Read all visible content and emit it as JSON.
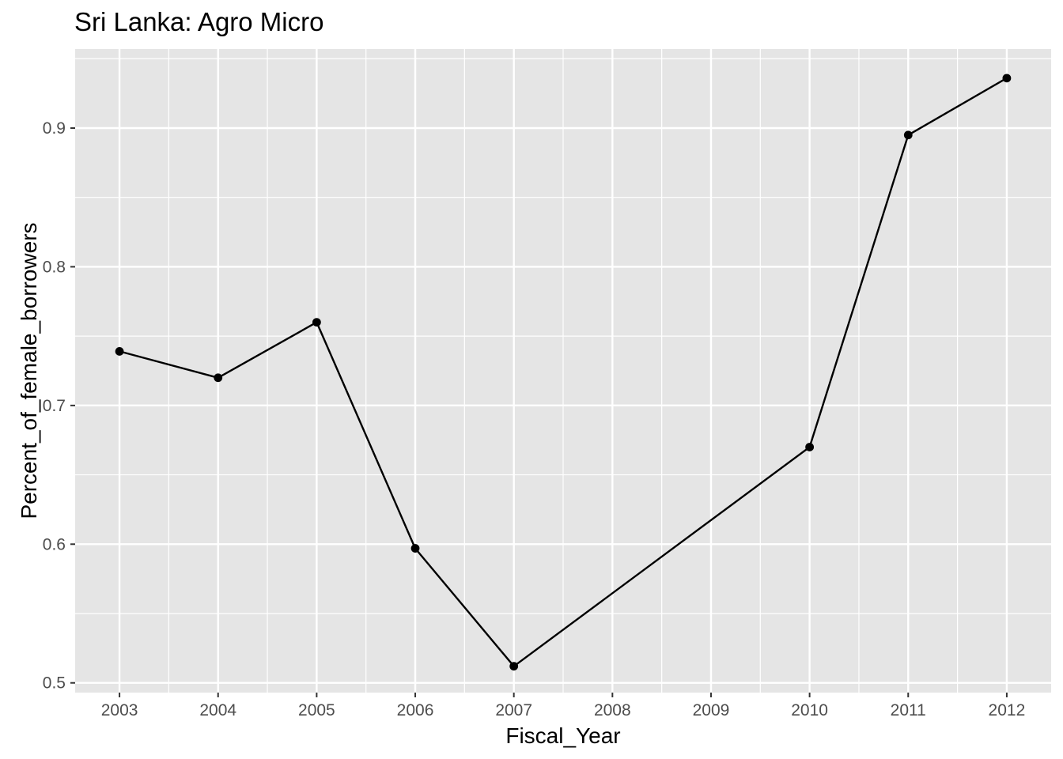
{
  "chart_data": {
    "type": "line",
    "title": "Sri Lanka:  Agro Micro",
    "xlabel": "Fiscal_Year",
    "ylabel": "Percent_of_female_borrowers",
    "x_ticks": [
      "2003",
      "2004",
      "2005",
      "2006",
      "2007",
      "2008",
      "2009",
      "2010",
      "2011",
      "2012"
    ],
    "y_ticks": [
      "0.5",
      "0.6",
      "0.7",
      "0.8",
      "0.9"
    ],
    "xlim": [
      2002.55,
      2012.45
    ],
    "ylim": [
      0.493,
      0.957
    ],
    "grid": true,
    "series": [
      {
        "points": [
          {
            "x": 2003,
            "y": 0.739
          },
          {
            "x": 2004,
            "y": 0.72
          },
          {
            "x": 2005,
            "y": 0.76
          },
          {
            "x": 2006,
            "y": 0.597
          },
          {
            "x": 2007,
            "y": 0.512
          },
          {
            "x": 2010,
            "y": 0.67
          },
          {
            "x": 2011,
            "y": 0.895
          },
          {
            "x": 2012,
            "y": 0.936
          }
        ]
      }
    ],
    "colors": {
      "panel_background": "#e5e5e5",
      "grid": "#ffffff",
      "line": "#000000",
      "point": "#000000",
      "tick_text": "#4d4d4d",
      "tick_mark": "#333333"
    }
  }
}
